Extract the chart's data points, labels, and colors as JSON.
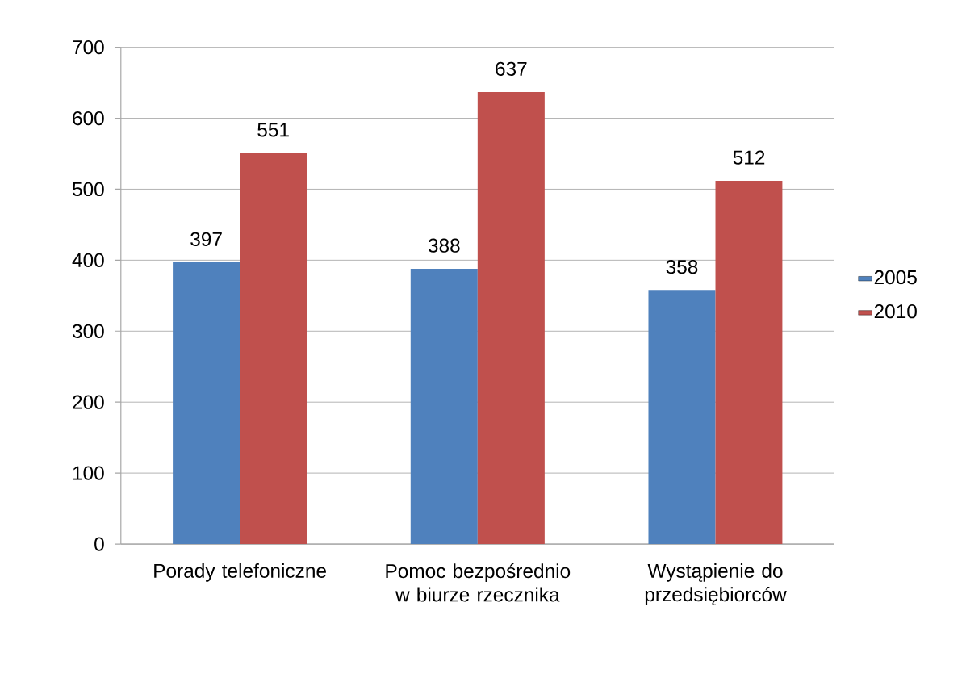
{
  "chart_data": {
    "type": "bar",
    "categories": [
      "Porady telefoniczne",
      "Pomoc bezpośrednio w biurze rzecznika",
      "Wystąpienie do przedsiębiorców"
    ],
    "series": [
      {
        "name": "2005",
        "color": "#4f81bd",
        "values": [
          397,
          388,
          358
        ]
      },
      {
        "name": "2010",
        "color": "#c0504d",
        "values": [
          551,
          637,
          512
        ]
      }
    ],
    "ylim": [
      0,
      700
    ],
    "yticks": [
      0,
      100,
      200,
      300,
      400,
      500,
      600,
      700
    ],
    "grid": "y",
    "legend": "right",
    "data_labels": true
  }
}
